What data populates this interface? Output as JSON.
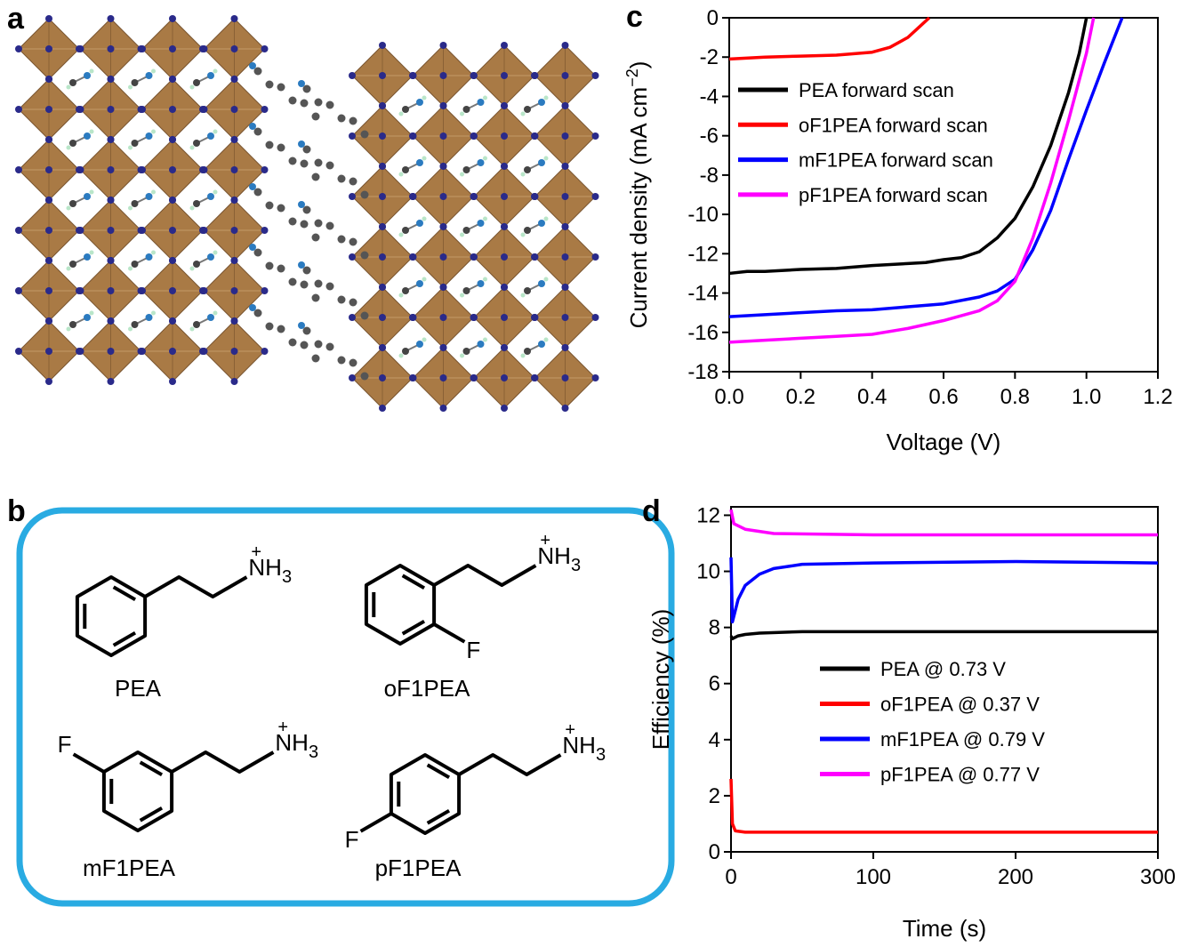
{
  "panel_labels": [
    "a",
    "b",
    "c",
    "d"
  ],
  "molecules": [
    {
      "name": "PEA"
    },
    {
      "name": "oF1PEA"
    },
    {
      "name": "mF1PEA"
    },
    {
      "name": "pF1PEA"
    }
  ],
  "ammonium": {
    "text": "NH",
    "subscript": "3",
    "charge": "+"
  },
  "fluorine": "F",
  "chart_data": [
    {
      "type": "line",
      "xlabel": "Voltage (V)",
      "ylabel": [
        "Current density (mA cm",
        "−2",
        ")"
      ],
      "xlim": [
        0,
        1.2
      ],
      "xticks": [
        {
          "value": 0,
          "label": "0.0"
        },
        0.2,
        0.4,
        0.6,
        0.8,
        {
          "value": 1,
          "label": "1.0"
        },
        1.2
      ],
      "ylim": [
        -18,
        0
      ],
      "yticks": [
        -18,
        -16,
        -14,
        -12,
        -10,
        -8,
        -6,
        -4,
        -2,
        0
      ],
      "legend": "upper left",
      "series": [
        {
          "name": "PEA forward scan",
          "color": "#000000",
          "x": [
            0,
            0.05,
            0.1,
            0.2,
            0.3,
            0.4,
            0.5,
            0.55,
            0.6,
            0.65,
            0.7,
            0.75,
            0.8,
            0.85,
            0.9,
            0.95,
            0.98,
            1.0
          ],
          "values": [
            -13.0,
            -12.9,
            -12.9,
            -12.8,
            -12.75,
            -12.6,
            -12.5,
            -12.45,
            -12.3,
            -12.2,
            -11.9,
            -11.2,
            -10.2,
            -8.6,
            -6.5,
            -3.8,
            -1.8,
            0
          ]
        },
        {
          "name": "oF1PEA forward scan",
          "color": "#ff0000",
          "x": [
            0,
            0.1,
            0.2,
            0.3,
            0.4,
            0.45,
            0.5,
            0.53,
            0.56
          ],
          "values": [
            -2.1,
            -2.0,
            -1.95,
            -1.9,
            -1.75,
            -1.5,
            -1.0,
            -0.5,
            0
          ]
        },
        {
          "name": "mF1PEA forward scan",
          "color": "#0000ff",
          "x": [
            0,
            0.1,
            0.2,
            0.3,
            0.4,
            0.5,
            0.6,
            0.7,
            0.75,
            0.8,
            0.85,
            0.9,
            0.95,
            1.0,
            1.05,
            1.1
          ],
          "values": [
            -15.2,
            -15.1,
            -15.0,
            -14.9,
            -14.85,
            -14.7,
            -14.55,
            -14.2,
            -13.9,
            -13.3,
            -11.8,
            -9.8,
            -7.2,
            -4.7,
            -2.3,
            0
          ]
        },
        {
          "name": "pF1PEA forward scan",
          "color": "#ff00ff",
          "x": [
            0,
            0.1,
            0.2,
            0.3,
            0.4,
            0.5,
            0.6,
            0.7,
            0.75,
            0.8,
            0.85,
            0.9,
            0.95,
            1.0,
            1.02
          ],
          "values": [
            -16.5,
            -16.4,
            -16.3,
            -16.2,
            -16.1,
            -15.8,
            -15.4,
            -14.9,
            -14.4,
            -13.4,
            -11.2,
            -8.4,
            -5.2,
            -1.8,
            0
          ]
        }
      ]
    },
    {
      "type": "line",
      "xlabel": "Time (s)",
      "ylabel": [
        "Efficiency (%)"
      ],
      "xlim": [
        0,
        300
      ],
      "xticks": [
        0,
        100,
        200,
        300
      ],
      "ylim": [
        0,
        12.3
      ],
      "yticks": [
        0,
        2,
        4,
        6,
        8,
        10,
        12
      ],
      "legend": "center right",
      "series": [
        {
          "name": "PEA @ 0.73 V",
          "color": "#000000",
          "x": [
            0,
            1,
            5,
            10,
            20,
            50,
            100,
            150,
            200,
            250,
            300
          ],
          "values": [
            7.7,
            7.6,
            7.7,
            7.75,
            7.8,
            7.85,
            7.85,
            7.85,
            7.85,
            7.85,
            7.85
          ]
        },
        {
          "name": "oF1PEA @ 0.37 V",
          "color": "#ff0000",
          "x": [
            0,
            1,
            3,
            10,
            300
          ],
          "values": [
            2.6,
            1.0,
            0.75,
            0.7,
            0.7
          ]
        },
        {
          "name": "mF1PEA @ 0.79 V",
          "color": "#0000ff",
          "x": [
            0,
            1,
            5,
            10,
            20,
            30,
            50,
            100,
            200,
            300
          ],
          "values": [
            10.5,
            8.2,
            9.0,
            9.5,
            9.9,
            10.1,
            10.25,
            10.3,
            10.35,
            10.3
          ]
        },
        {
          "name": "pF1PEA @ 0.77 V",
          "color": "#ff00ff",
          "x": [
            0,
            2,
            10,
            30,
            100,
            200,
            300
          ],
          "values": [
            12.2,
            11.7,
            11.5,
            11.35,
            11.3,
            11.3,
            11.3
          ]
        }
      ]
    }
  ]
}
